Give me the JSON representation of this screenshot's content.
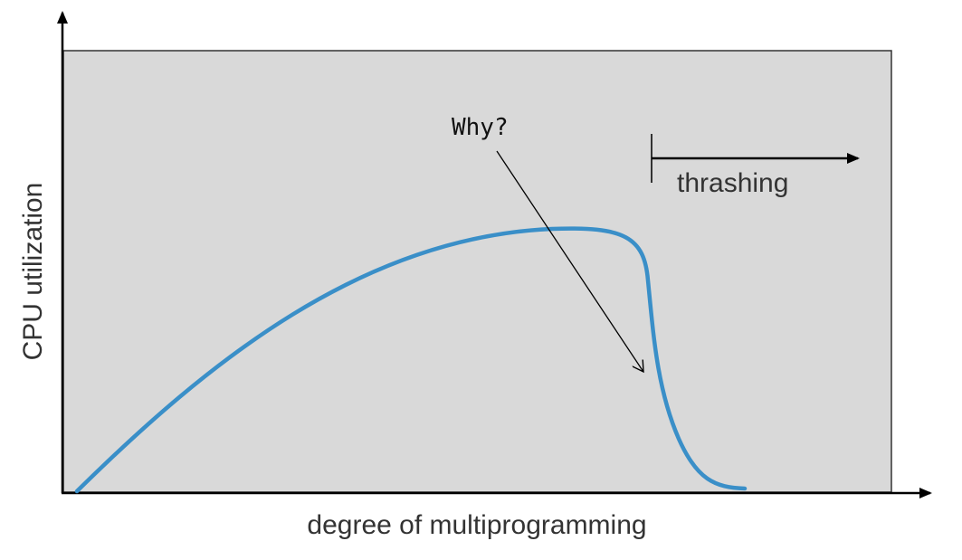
{
  "diagram": {
    "y_axis_label": "CPU utilization",
    "x_axis_label": "degree of multiprogramming",
    "region_label": "thrashing",
    "annotation": "Why?",
    "colors": {
      "plot_background": "#d9d9d9",
      "curve": "#3a8fc8",
      "axis": "#000000",
      "text": "#333333"
    }
  }
}
